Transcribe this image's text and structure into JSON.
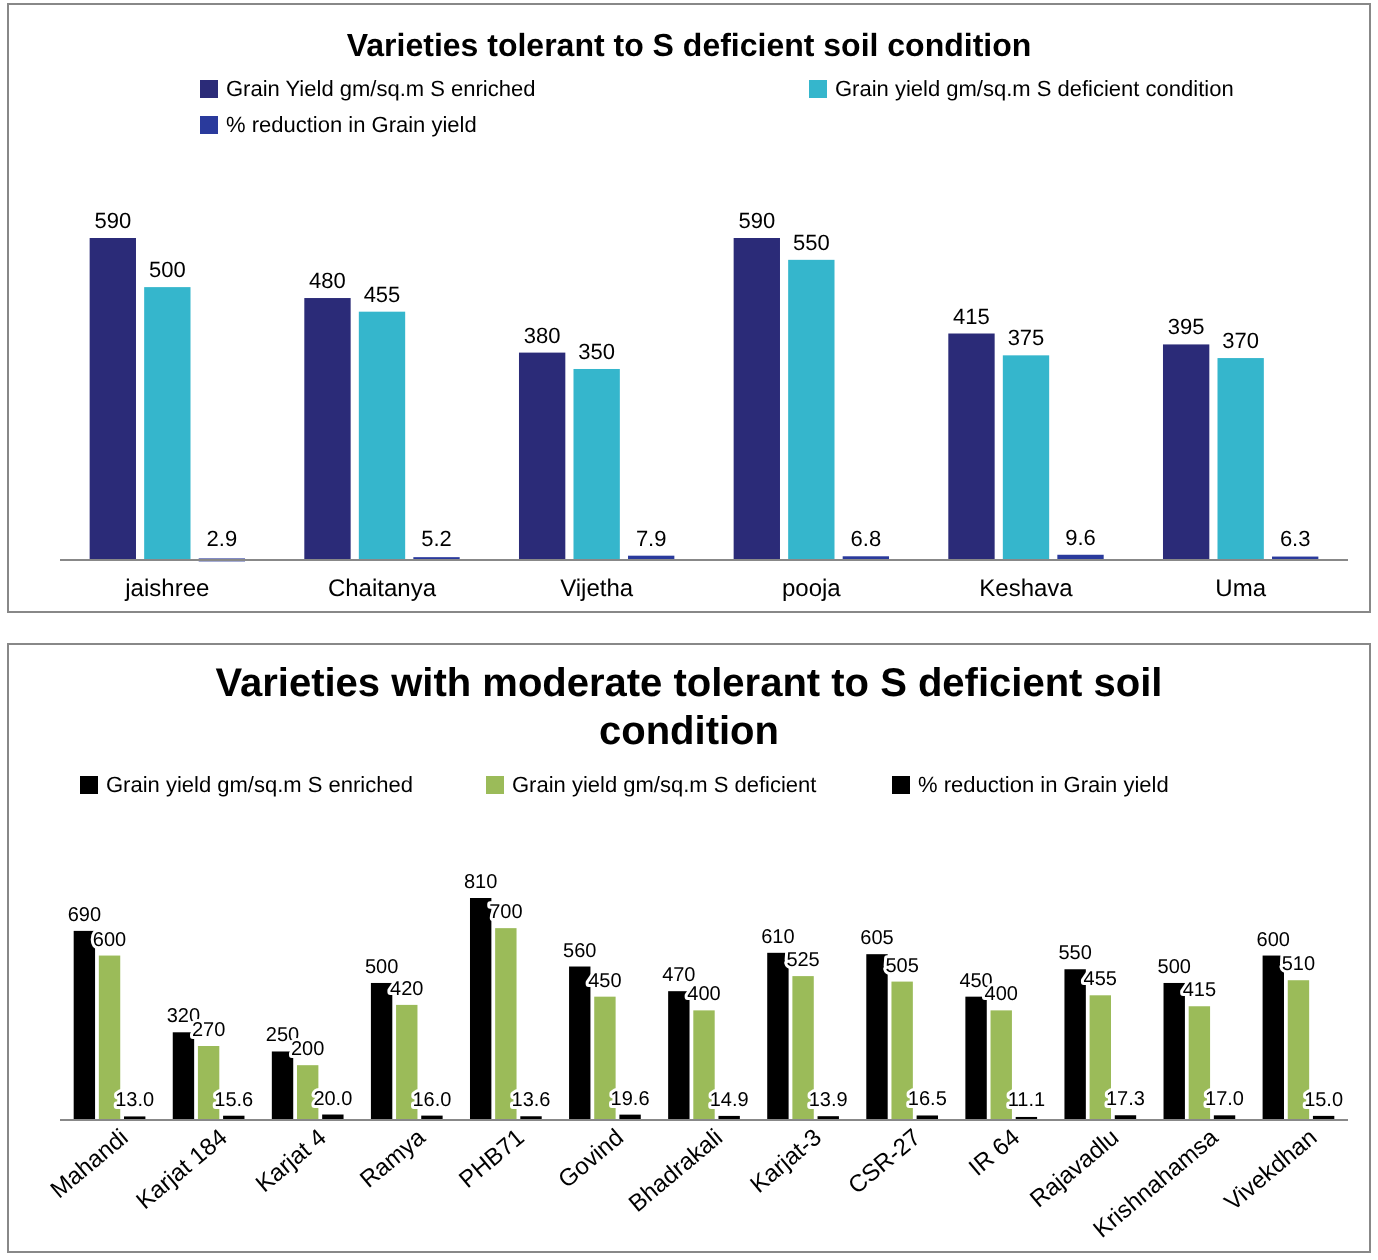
{
  "chart_data": [
    {
      "type": "bar",
      "title": "Varieties tolerant to S deficient soil condition",
      "categories": [
        "jaishree",
        "Chaitanya",
        "Vijetha",
        "pooja",
        "Keshava",
        "Uma"
      ],
      "series": [
        {
          "name": "Grain Yield gm/sq.m S enriched",
          "color": "#2b2b78",
          "values": [
            590,
            480,
            380,
            590,
            415,
            395
          ]
        },
        {
          "name": "Grain yield gm/sq.m S deficient condition",
          "color": "#35b6cc",
          "values": [
            500,
            455,
            350,
            550,
            375,
            370
          ]
        },
        {
          "name": "% reduction in Grain yield",
          "color": "#2a3a9c",
          "values": [
            2.9,
            5.2,
            7.9,
            6.8,
            9.6,
            6.3
          ]
        }
      ],
      "data_labels": true,
      "legend": "top"
    },
    {
      "type": "bar",
      "title": "Varieties with moderate tolerant to S deficient soil condition",
      "categories": [
        "Mahandi",
        "Karjat 184",
        "Karjat 4",
        "Ramya",
        "PHB71",
        "Govind",
        "Bhadrakali",
        "Karjat-3",
        "CSR-27",
        "IR 64",
        "Rajavadlu",
        "Krishnahamsa",
        "Vivekdhan"
      ],
      "series": [
        {
          "name": "Grain yield gm/sq.m S enriched",
          "color": "#000000",
          "values": [
            690,
            320,
            250,
            500,
            810,
            560,
            470,
            610,
            605,
            450,
            550,
            500,
            600
          ]
        },
        {
          "name": "Grain yield gm/sq.m S deficient",
          "color": "#9bbb59",
          "values": [
            600,
            270,
            200,
            420,
            700,
            450,
            400,
            525,
            505,
            400,
            455,
            415,
            510
          ]
        },
        {
          "name": "% reduction in Grain yield",
          "color": "#000000",
          "values": [
            13.0,
            15.6,
            20.0,
            16.0,
            13.6,
            19.6,
            14.9,
            13.9,
            16.5,
            11.1,
            17.3,
            17.0,
            15.0
          ],
          "value_labels": [
            "13.0",
            "15.6",
            "20.0",
            "16.0",
            "13.6",
            "19.6",
            "14.9",
            "13.9",
            "16.5",
            "11.1",
            "17.3",
            "17.0",
            "15.0"
          ]
        }
      ],
      "data_labels": true,
      "legend": "top"
    }
  ]
}
